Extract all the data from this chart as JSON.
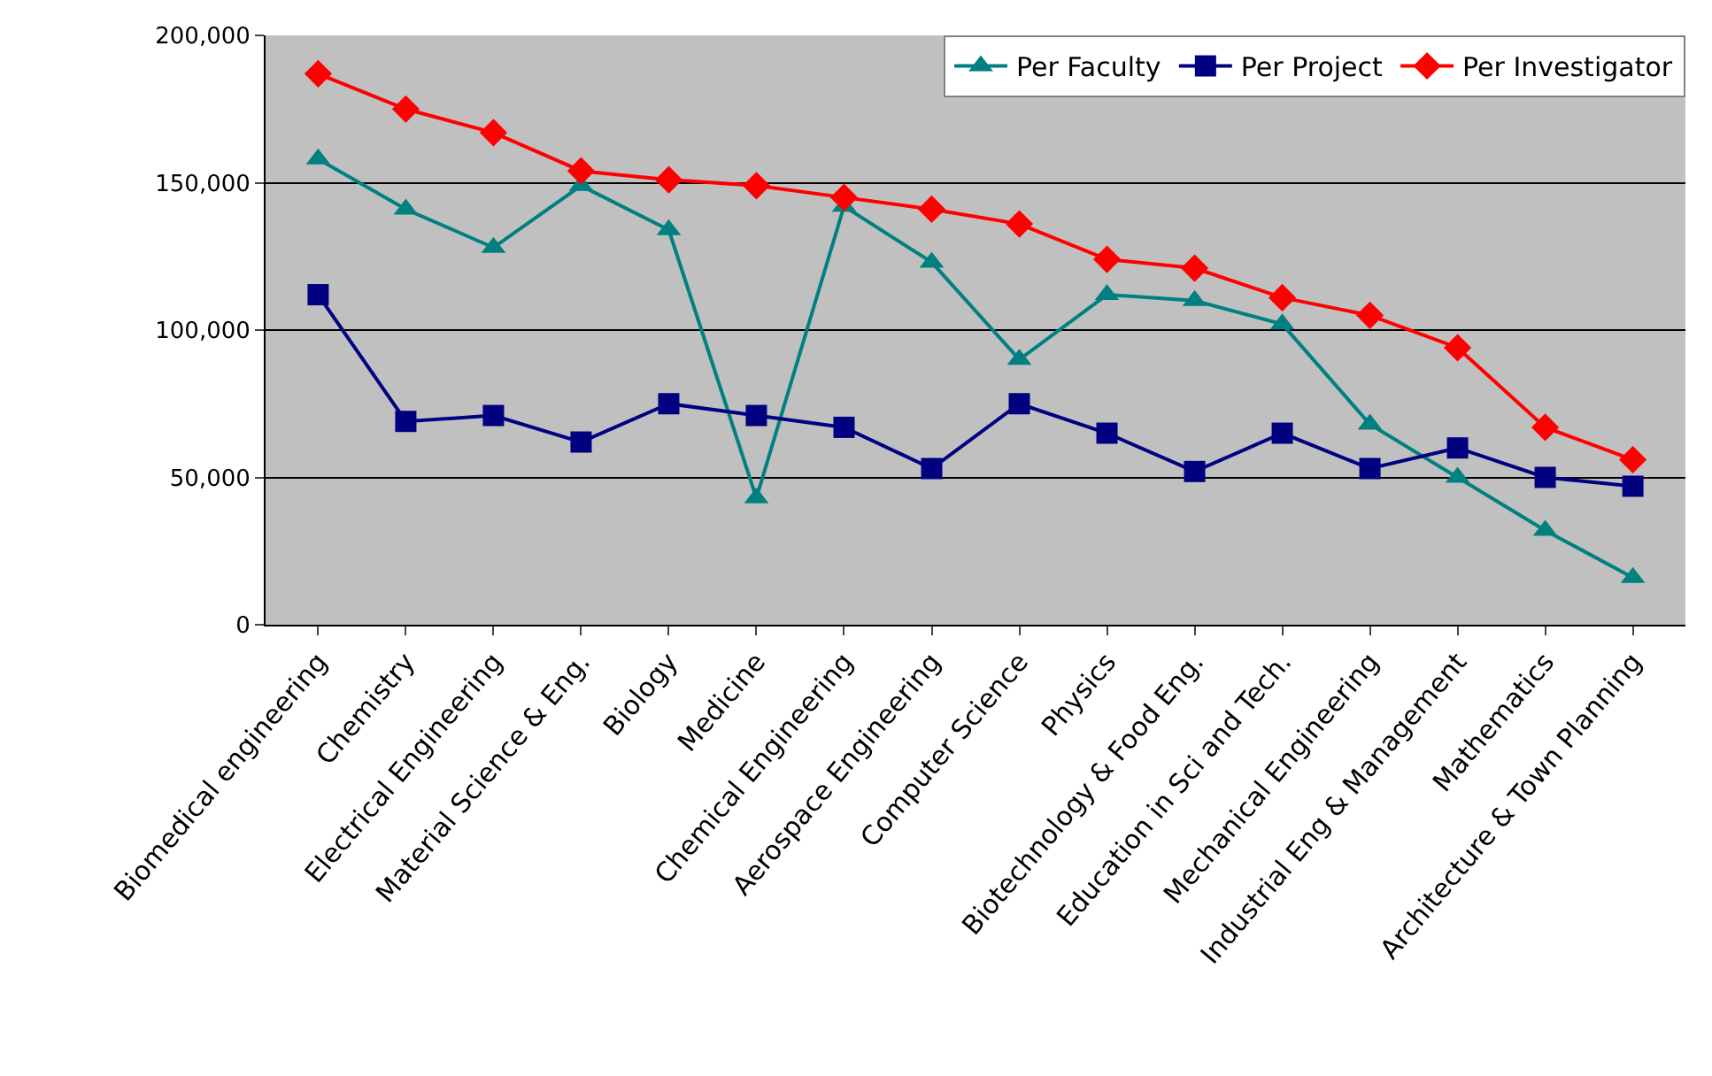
{
  "chart_data": {
    "type": "line",
    "categories": [
      "Biomedical engineering",
      "Chemistry",
      "Electrical Engineering",
      "Material Science & Eng.",
      "Biology",
      "Medicine",
      "Chemical Engineering",
      "Aerospace Engineering",
      "Computer Science",
      "Physics",
      "Biotechnology & Food Eng.",
      "Education in Sci and Tech.",
      "Mechanical Engineering",
      "Industrial Eng & Management",
      "Mathematics",
      "Architecture & Town Planning"
    ],
    "series": [
      {
        "name": "Per Faculty",
        "color": "#008080",
        "marker": "triangle",
        "values": [
          158000,
          141000,
          128000,
          149000,
          134000,
          43000,
          142000,
          123000,
          90000,
          112000,
          110000,
          102000,
          68000,
          50000,
          32000,
          16000
        ]
      },
      {
        "name": "Per Project",
        "color": "#000080",
        "marker": "square",
        "values": [
          112000,
          69000,
          71000,
          62000,
          75000,
          71000,
          67000,
          53000,
          75000,
          65000,
          52000,
          65000,
          53000,
          60000,
          50000,
          47000
        ]
      },
      {
        "name": "Per Investigator",
        "color": "#ff0000",
        "marker": "diamond",
        "values": [
          187000,
          175000,
          167000,
          154000,
          151000,
          149000,
          145000,
          141000,
          136000,
          124000,
          121000,
          111000,
          105000,
          94000,
          67000,
          56000
        ]
      }
    ],
    "ylim": [
      0,
      200000
    ],
    "yticks": [
      {
        "value": 0,
        "label": "0"
      },
      {
        "value": 50000,
        "label": "50,000"
      },
      {
        "value": 100000,
        "label": "100,000"
      },
      {
        "value": 150000,
        "label": "150,000"
      },
      {
        "value": 200000,
        "label": "200,000"
      }
    ],
    "grid": "y",
    "legend": "top right",
    "line_style": "solid"
  }
}
